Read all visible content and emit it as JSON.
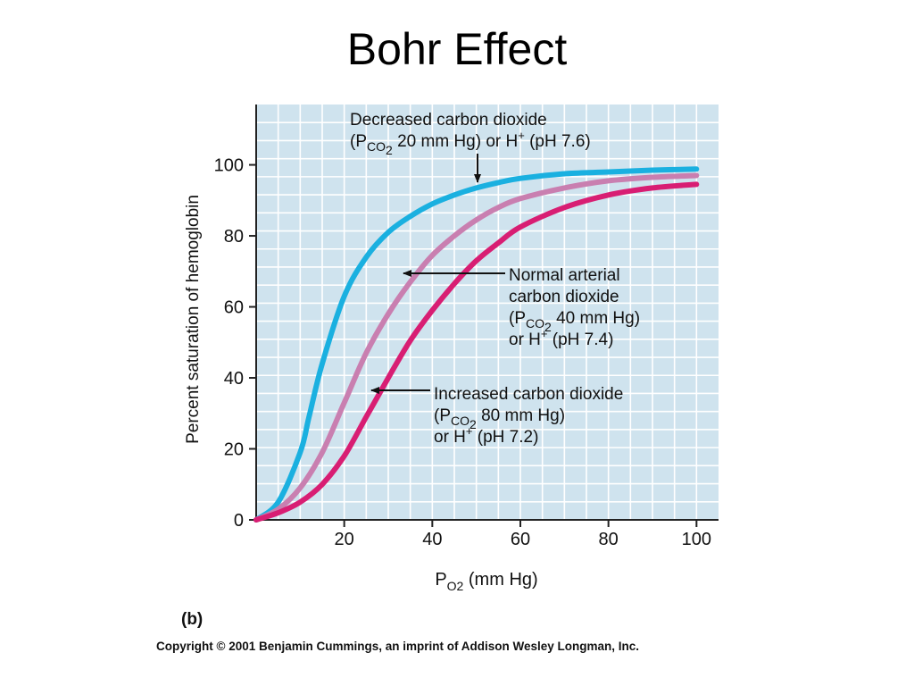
{
  "slide": {
    "title": "Bohr Effect",
    "panel_label": "(b)",
    "copyright": "Copyright © 2001 Benjamin Cummings, an imprint of Addison Wesley Longman, Inc."
  },
  "colors": {
    "plot_background": "#cfe3ee",
    "grid": "#ffffff",
    "decreased_co2": "#1ab0e0",
    "normal_co2": "#c97fb0",
    "increased_co2": "#d81e73"
  },
  "chart_data": {
    "type": "line",
    "xlabel_main": "P",
    "xlabel_sub": "O2",
    "xlabel_unit": " (mm Hg)",
    "ylabel": "Percent saturation of hemoglobin",
    "xlim": [
      0,
      105
    ],
    "ylim": [
      0,
      117
    ],
    "xticks": [
      20,
      40,
      60,
      80,
      100
    ],
    "yticks": [
      0,
      20,
      40,
      60,
      80,
      100
    ],
    "grid": true,
    "series": [
      {
        "key": "decreased",
        "color": "#1ab0e0",
        "points": [
          [
            0,
            0
          ],
          [
            5,
            5
          ],
          [
            10,
            19
          ],
          [
            12,
            29
          ],
          [
            15,
            44
          ],
          [
            20,
            63
          ],
          [
            25,
            74
          ],
          [
            30,
            81
          ],
          [
            35,
            85.5
          ],
          [
            40,
            89
          ],
          [
            45,
            91.5
          ],
          [
            50,
            93.5
          ],
          [
            55,
            95
          ],
          [
            60,
            96.2
          ],
          [
            70,
            97.5
          ],
          [
            80,
            98
          ],
          [
            90,
            98.5
          ],
          [
            100,
            98.8
          ]
        ]
      },
      {
        "key": "normal",
        "color": "#c97fb0",
        "points": [
          [
            0,
            0
          ],
          [
            5,
            3
          ],
          [
            10,
            9
          ],
          [
            15,
            19
          ],
          [
            20,
            33
          ],
          [
            25,
            47
          ],
          [
            30,
            58
          ],
          [
            35,
            67
          ],
          [
            40,
            74.5
          ],
          [
            45,
            80
          ],
          [
            50,
            84.5
          ],
          [
            55,
            88
          ],
          [
            60,
            90.5
          ],
          [
            70,
            93.5
          ],
          [
            80,
            95.5
          ],
          [
            90,
            96.5
          ],
          [
            100,
            97
          ]
        ]
      },
      {
        "key": "increased",
        "color": "#d81e73",
        "points": [
          [
            0,
            0
          ],
          [
            5,
            2
          ],
          [
            10,
            5
          ],
          [
            15,
            10
          ],
          [
            20,
            18
          ],
          [
            25,
            29
          ],
          [
            30,
            40
          ],
          [
            35,
            50.5
          ],
          [
            40,
            59
          ],
          [
            45,
            66.5
          ],
          [
            50,
            73
          ],
          [
            55,
            78
          ],
          [
            60,
            82.5
          ],
          [
            70,
            88
          ],
          [
            80,
            91.5
          ],
          [
            90,
            93.5
          ],
          [
            100,
            94.5
          ]
        ]
      }
    ],
    "annotations": [
      {
        "key": "decreased",
        "lines": [
          {
            "segs": [
              {
                "t": "Decreased carbon dioxide"
              }
            ]
          },
          {
            "segs": [
              {
                "t": "(P"
              },
              {
                "t": "CO",
                "sub": true
              },
              {
                "t": "2",
                "sub2": true
              },
              {
                "t": " 20 mm Hg) or H"
              },
              {
                "t": "+",
                "sup": true
              },
              {
                "t": " (pH 7.6)"
              }
            ]
          }
        ]
      },
      {
        "key": "normal",
        "lines": [
          {
            "segs": [
              {
                "t": "Normal arterial"
              }
            ]
          },
          {
            "segs": [
              {
                "t": "carbon dioxide"
              }
            ]
          },
          {
            "segs": [
              {
                "t": "(P"
              },
              {
                "t": "CO",
                "sub": true
              },
              {
                "t": "2",
                "sub2": true
              },
              {
                "t": " 40 mm Hg)"
              }
            ]
          },
          {
            "segs": [
              {
                "t": "or H"
              },
              {
                "t": "+",
                "sup": true
              },
              {
                "t": " (pH 7.4)"
              }
            ]
          }
        ]
      },
      {
        "key": "increased",
        "lines": [
          {
            "segs": [
              {
                "t": "Increased carbon dioxide"
              }
            ]
          },
          {
            "segs": [
              {
                "t": "(P"
              },
              {
                "t": "CO",
                "sub": true
              },
              {
                "t": "2",
                "sub2": true
              },
              {
                "t": " 80 mm Hg)"
              }
            ]
          },
          {
            "segs": [
              {
                "t": "or H"
              },
              {
                "t": "+",
                "sup": true
              },
              {
                "t": " (pH 7.2)"
              }
            ]
          }
        ]
      }
    ]
  }
}
